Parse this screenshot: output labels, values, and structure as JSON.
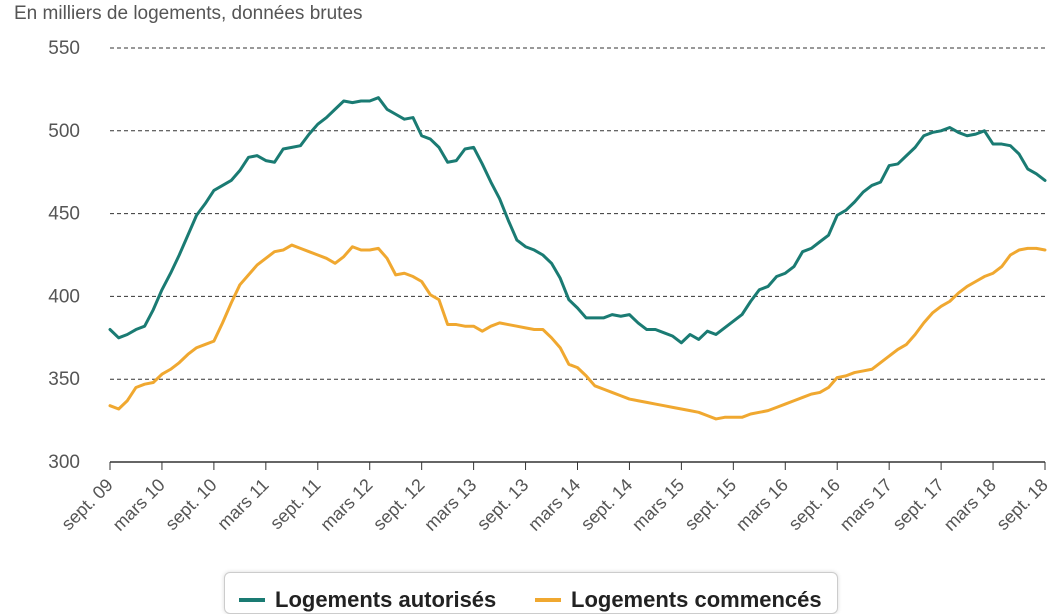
{
  "unit_label": "En milliers de logements, données brutes",
  "colors": {
    "authorized": "#1a7b73",
    "started": "#f0a830",
    "axis": "#555555",
    "grid": "#333333"
  },
  "chart_data": {
    "type": "line",
    "ylim": [
      300,
      550
    ],
    "yticks": [
      300,
      350,
      400,
      450,
      500,
      550
    ],
    "grid": "horizontal-dashed",
    "legend_position": "bottom",
    "x_ticks": [
      "sept. 09",
      "mars 10",
      "sept. 10",
      "mars 11",
      "sept. 11",
      "mars 12",
      "sept. 12",
      "mars 13",
      "sept. 13",
      "mars 14",
      "sept. 14",
      "mars 15",
      "sept. 15",
      "mars 16",
      "sept. 16",
      "mars 17",
      "sept. 17",
      "mars 18",
      "sept. 18"
    ],
    "series": [
      {
        "name": "Logements autorisés",
        "color": "#1a7b73",
        "values": [
          380,
          375,
          377,
          380,
          382,
          392,
          404,
          414,
          425,
          437,
          449,
          456,
          464,
          467,
          470,
          476,
          484,
          485,
          482,
          481,
          489,
          490,
          491,
          498,
          504,
          508,
          513,
          518,
          517,
          518,
          518,
          520,
          513,
          510,
          507,
          508,
          497,
          495,
          490,
          481,
          482,
          489,
          490,
          480,
          469,
          459,
          446,
          434,
          430,
          428,
          425,
          420,
          411,
          398,
          393,
          387,
          387,
          387,
          389,
          388,
          389,
          384,
          380,
          380,
          378,
          376,
          372,
          377,
          374,
          379,
          377,
          381,
          385,
          389,
          397,
          404,
          406,
          412,
          414,
          418,
          427,
          429,
          433,
          437,
          449,
          452,
          457,
          463,
          467,
          469,
          479,
          480,
          485,
          490,
          497,
          499,
          500,
          502,
          499,
          497,
          498,
          500,
          492,
          492,
          491,
          486,
          477,
          474,
          470
        ]
      },
      {
        "name": "Logements commencés",
        "color": "#f0a830",
        "values": [
          334,
          332,
          337,
          345,
          347,
          348,
          353,
          356,
          360,
          365,
          369,
          371,
          373,
          384,
          396,
          407,
          413,
          419,
          423,
          427,
          428,
          431,
          429,
          427,
          425,
          423,
          420,
          424,
          430,
          428,
          428,
          429,
          423,
          413,
          414,
          412,
          409,
          401,
          398,
          383,
          383,
          382,
          382,
          379,
          382,
          384,
          383,
          382,
          381,
          380,
          380,
          375,
          369,
          359,
          357,
          352,
          346,
          344,
          342,
          340,
          338,
          337,
          336,
          335,
          334,
          333,
          332,
          331,
          330,
          328,
          326,
          327,
          327,
          327,
          329,
          330,
          331,
          333,
          335,
          337,
          339,
          341,
          342,
          345,
          351,
          352,
          354,
          355,
          356,
          360,
          364,
          368,
          371,
          377,
          384,
          390,
          394,
          397,
          402,
          406,
          409,
          412,
          414,
          418,
          425,
          428,
          429,
          429,
          428
        ]
      }
    ]
  }
}
